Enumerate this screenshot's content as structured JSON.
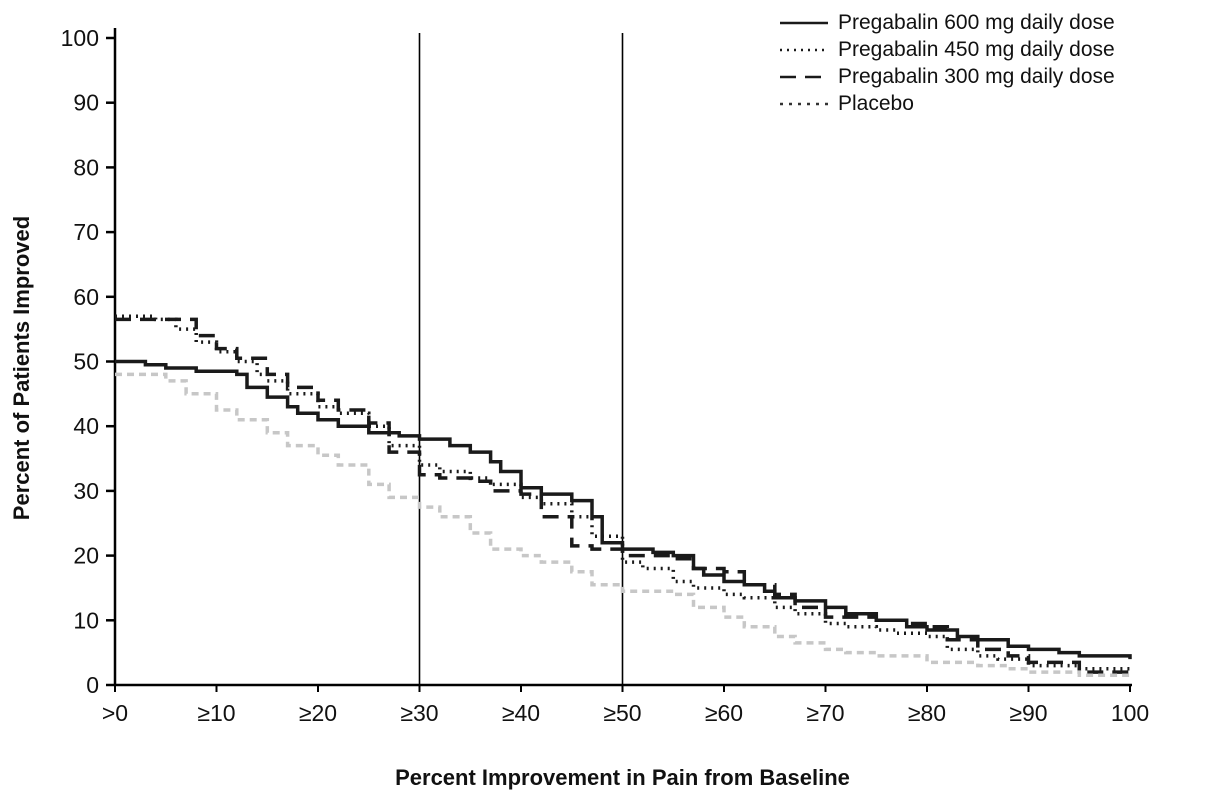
{
  "chart_data": {
    "type": "line",
    "title": "",
    "xlabel": "Percent Improvement in Pain from Baseline",
    "ylabel": "Percent of Patients Improved",
    "xlim": [
      0,
      100
    ],
    "ylim": [
      0,
      100
    ],
    "grid": false,
    "legend_position": "top-right",
    "reference_lines_x": [
      30,
      50
    ],
    "x_ticks": [
      {
        "value": 0,
        "label": ">0"
      },
      {
        "value": 10,
        "label": "≥10"
      },
      {
        "value": 20,
        "label": "≥20"
      },
      {
        "value": 30,
        "label": "≥30"
      },
      {
        "value": 40,
        "label": "≥40"
      },
      {
        "value": 50,
        "label": "≥50"
      },
      {
        "value": 60,
        "label": "≥60"
      },
      {
        "value": 70,
        "label": "≥70"
      },
      {
        "value": 80,
        "label": "≥80"
      },
      {
        "value": 90,
        "label": "≥90"
      },
      {
        "value": 100,
        "label": "100"
      }
    ],
    "y_ticks": [
      0,
      10,
      20,
      30,
      40,
      50,
      60,
      70,
      80,
      90,
      100
    ],
    "series": [
      {
        "name": "Pregabalin 600 mg daily dose",
        "dash": "",
        "legend_dash": "",
        "color": "#1a1a1a",
        "width": 3.5,
        "points": [
          [
            0,
            50
          ],
          [
            3,
            49.5
          ],
          [
            5,
            49
          ],
          [
            8,
            48.5
          ],
          [
            12,
            48
          ],
          [
            13,
            46
          ],
          [
            15,
            44.5
          ],
          [
            17,
            43
          ],
          [
            18,
            42
          ],
          [
            20,
            41
          ],
          [
            22,
            40
          ],
          [
            25,
            39
          ],
          [
            28,
            38.5
          ],
          [
            30,
            38
          ],
          [
            33,
            37
          ],
          [
            35,
            36
          ],
          [
            37,
            34.5
          ],
          [
            38,
            33
          ],
          [
            40,
            30.5
          ],
          [
            42,
            29.5
          ],
          [
            45,
            28.5
          ],
          [
            47,
            26
          ],
          [
            48,
            22
          ],
          [
            50,
            21
          ],
          [
            53,
            20.5
          ],
          [
            55,
            20
          ],
          [
            57,
            18
          ],
          [
            58,
            17
          ],
          [
            60,
            16
          ],
          [
            62,
            15.5
          ],
          [
            64,
            14.5
          ],
          [
            65,
            13.5
          ],
          [
            67,
            13
          ],
          [
            70,
            12
          ],
          [
            72,
            11
          ],
          [
            75,
            10
          ],
          [
            78,
            9
          ],
          [
            80,
            8.5
          ],
          [
            83,
            7.5
          ],
          [
            85,
            7
          ],
          [
            88,
            6
          ],
          [
            90,
            5.5
          ],
          [
            93,
            5
          ],
          [
            95,
            4.5
          ],
          [
            100,
            4
          ]
        ]
      },
      {
        "name": "Pregabalin 450 mg daily dose",
        "dash": "2 5",
        "legend_dash": "2 5",
        "color": "#1a1a1a",
        "width": 3.5,
        "points": [
          [
            0,
            57
          ],
          [
            4,
            56.5
          ],
          [
            6,
            55
          ],
          [
            8,
            53
          ],
          [
            10,
            51.5
          ],
          [
            12,
            50
          ],
          [
            14,
            48
          ],
          [
            15,
            47
          ],
          [
            17,
            45
          ],
          [
            20,
            43
          ],
          [
            22,
            42
          ],
          [
            25,
            40
          ],
          [
            27,
            37
          ],
          [
            30,
            34
          ],
          [
            32,
            33
          ],
          [
            35,
            32
          ],
          [
            37,
            31
          ],
          [
            40,
            29
          ],
          [
            42,
            28
          ],
          [
            45,
            26
          ],
          [
            47,
            23
          ],
          [
            50,
            19
          ],
          [
            52,
            18
          ],
          [
            55,
            16
          ],
          [
            57,
            15
          ],
          [
            60,
            14
          ],
          [
            62,
            13.5
          ],
          [
            65,
            12
          ],
          [
            67,
            11
          ],
          [
            70,
            9.5
          ],
          [
            72,
            9
          ],
          [
            75,
            8.5
          ],
          [
            77,
            8
          ],
          [
            80,
            7.5
          ],
          [
            82,
            5.5
          ],
          [
            85,
            4.5
          ],
          [
            87,
            4
          ],
          [
            90,
            3
          ],
          [
            95,
            2.5
          ],
          [
            100,
            2
          ]
        ]
      },
      {
        "name": "Pregabalin 300 mg daily dose",
        "dash": "16 9",
        "legend_dash": "16 9",
        "color": "#1a1a1a",
        "width": 3.5,
        "points": [
          [
            0,
            56.5
          ],
          [
            6,
            56.5
          ],
          [
            8,
            54
          ],
          [
            10,
            52
          ],
          [
            12,
            50.5
          ],
          [
            15,
            48
          ],
          [
            17,
            46
          ],
          [
            20,
            44
          ],
          [
            22,
            42.5
          ],
          [
            25,
            40.5
          ],
          [
            27,
            36
          ],
          [
            30,
            32.5
          ],
          [
            32,
            32
          ],
          [
            35,
            31.5
          ],
          [
            37,
            30
          ],
          [
            40,
            29.5
          ],
          [
            42,
            26
          ],
          [
            45,
            21.5
          ],
          [
            47,
            21
          ],
          [
            50,
            20
          ],
          [
            55,
            19.5
          ],
          [
            57,
            18
          ],
          [
            60,
            17.5
          ],
          [
            62,
            15.5
          ],
          [
            65,
            14
          ],
          [
            67,
            12
          ],
          [
            70,
            10.5
          ],
          [
            75,
            10
          ],
          [
            78,
            9.5
          ],
          [
            80,
            9
          ],
          [
            82,
            7
          ],
          [
            85,
            5.5
          ],
          [
            88,
            4.5
          ],
          [
            90,
            3.5
          ],
          [
            95,
            2
          ],
          [
            100,
            1.5
          ]
        ]
      },
      {
        "name": "Placebo",
        "dash": "7 5",
        "legend_dash": "3 6",
        "color": "#c7c7c7",
        "legend_color": "#333333",
        "width": 3.5,
        "points": [
          [
            0,
            48
          ],
          [
            5,
            47
          ],
          [
            7,
            45
          ],
          [
            10,
            42.5
          ],
          [
            12,
            41
          ],
          [
            15,
            39
          ],
          [
            17,
            37
          ],
          [
            20,
            35.5
          ],
          [
            22,
            34
          ],
          [
            25,
            31
          ],
          [
            27,
            29
          ],
          [
            30,
            27.5
          ],
          [
            32,
            26
          ],
          [
            35,
            23.5
          ],
          [
            37,
            21
          ],
          [
            40,
            20
          ],
          [
            42,
            19
          ],
          [
            45,
            17.5
          ],
          [
            47,
            15.5
          ],
          [
            50,
            14.5
          ],
          [
            55,
            14
          ],
          [
            57,
            12
          ],
          [
            60,
            10.5
          ],
          [
            62,
            9
          ],
          [
            65,
            7.5
          ],
          [
            67,
            6.5
          ],
          [
            70,
            5.5
          ],
          [
            72,
            5
          ],
          [
            75,
            4.5
          ],
          [
            80,
            3.5
          ],
          [
            85,
            3
          ],
          [
            88,
            2.5
          ],
          [
            90,
            2
          ],
          [
            95,
            1.5
          ],
          [
            100,
            1
          ]
        ]
      }
    ]
  }
}
